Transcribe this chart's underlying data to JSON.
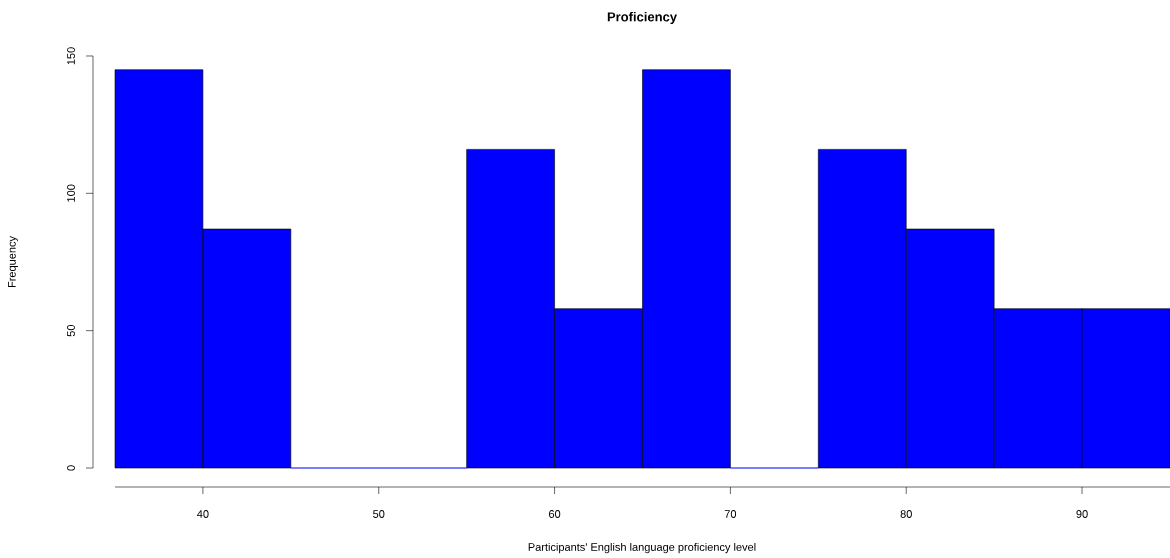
{
  "chart_data": {
    "type": "histogram",
    "title": "Proficiency",
    "xlabel": "Participants' English language proficiency level",
    "ylabel": "Frequency",
    "bins": [
      35,
      40,
      45,
      50,
      55,
      60,
      65,
      70,
      75,
      80,
      85,
      90,
      95
    ],
    "values": [
      145,
      87,
      0,
      0,
      116,
      58,
      145,
      0,
      116,
      87,
      58,
      58
    ],
    "color": "#0000ff",
    "xlim": [
      35,
      95
    ],
    "ylim": [
      0,
      150
    ],
    "xticks": [
      40,
      50,
      60,
      70,
      80,
      90
    ],
    "yticks": [
      0,
      50,
      100,
      150
    ]
  }
}
